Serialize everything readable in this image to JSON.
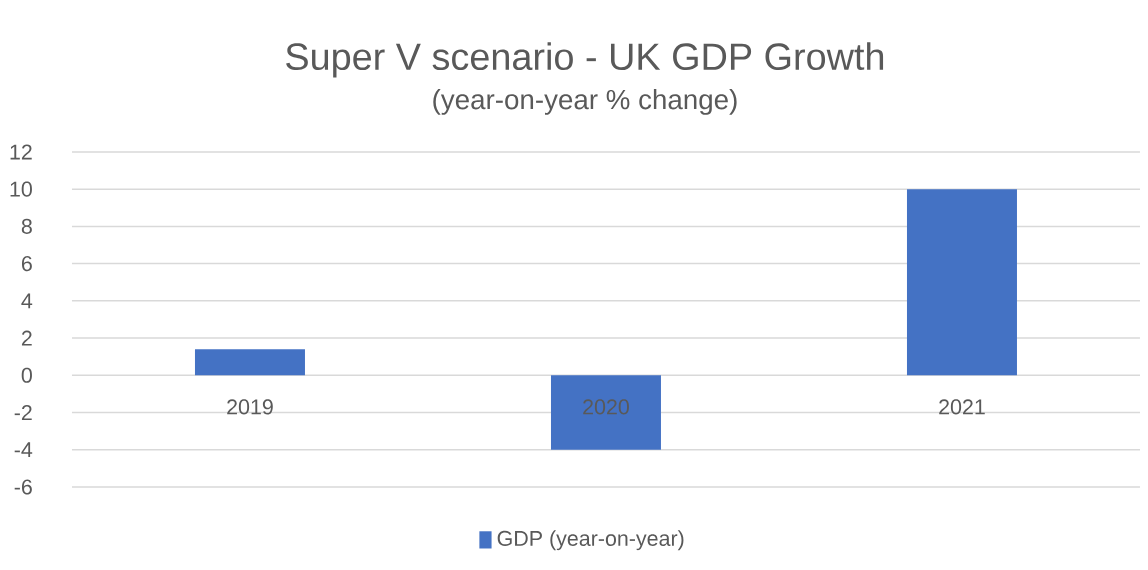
{
  "chart_data": {
    "type": "bar",
    "title": "Super V scenario - UK GDP Growth",
    "subtitle": "(year-on-year % change)",
    "categories": [
      "2019",
      "2020",
      "2021"
    ],
    "series": [
      {
        "name": "GDP (year-on-year)",
        "color": "#4472c4",
        "values": [
          1.4,
          -4,
          10
        ]
      }
    ],
    "ylim": [
      -6,
      12
    ],
    "yticks": [
      -6,
      -4,
      -2,
      0,
      2,
      4,
      6,
      8,
      10,
      12
    ],
    "grid": "y",
    "legend": "bottom"
  }
}
